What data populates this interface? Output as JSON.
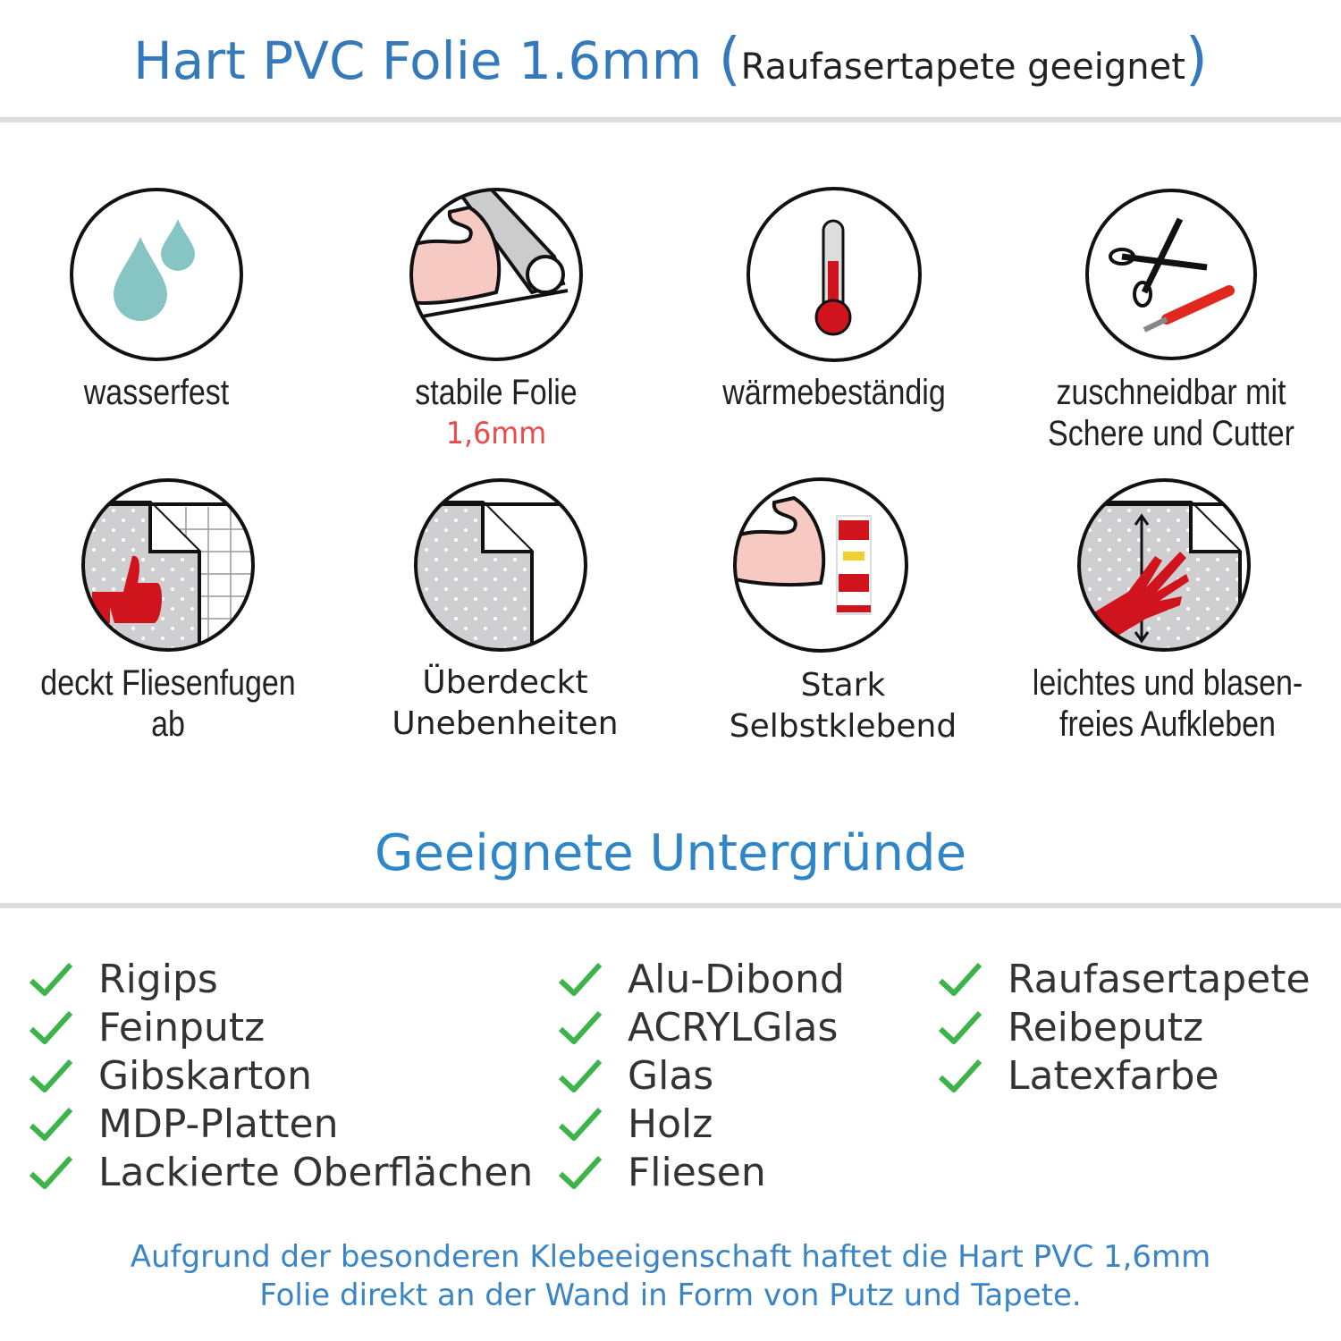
{
  "header": {
    "title": "Hart PVC Folie 1.6mm",
    "open_paren": "(",
    "subtitle": "Raufasertapete geeignet",
    "close_paren": ")"
  },
  "features": [
    {
      "icon": "water-drops-icon",
      "label": "wasserfest"
    },
    {
      "icon": "muscle-roll-icon",
      "label": "stabile Folie",
      "highlight": "1,6mm"
    },
    {
      "icon": "thermometer-icon",
      "label": "wärmebeständig"
    },
    {
      "icon": "scissors-cutter-icon",
      "label": "zuschneidbar mit",
      "label2": "Schere und Cutter"
    },
    {
      "icon": "thumbs-up-tiles-icon",
      "label": "deckt Fliesenfugen ab"
    },
    {
      "icon": "peeled-foil-icon",
      "label": "Überdeckt",
      "label2": "Unebenheiten"
    },
    {
      "icon": "muscle-glue-icon",
      "label": "Stark",
      "label2": "Selbstklebend"
    },
    {
      "icon": "hand-smooth-icon",
      "label": "leichtes und blasen-",
      "label2": "freies Aufkleben"
    }
  ],
  "surfaces": {
    "heading": "Geeignete Untergründe",
    "columns": [
      [
        "Rigips",
        "Feinputz",
        "Gibskarton",
        "MDP-Platten",
        "Lackierte Oberflächen"
      ],
      [
        "Alu-Dibond",
        "ACRYLGlas",
        "Glas",
        "Holz",
        "Fliesen"
      ],
      [
        "Raufasertapete",
        "Reibeputz",
        "Latexfarbe"
      ]
    ]
  },
  "footer": {
    "line1": "Aufgrund der besonderen Klebeeigenschaft haftet die Hart PVC 1,6mm",
    "line2": "Folie direkt an der Wand in Form von Putz und Tapete."
  },
  "colors": {
    "title_blue": "#3479bb",
    "heading_blue": "#2e86c8",
    "check_green": "#3cb44a",
    "accent_red": "#e84c4c",
    "icon_red": "#d0141e",
    "drop_teal": "#86c5c4"
  }
}
